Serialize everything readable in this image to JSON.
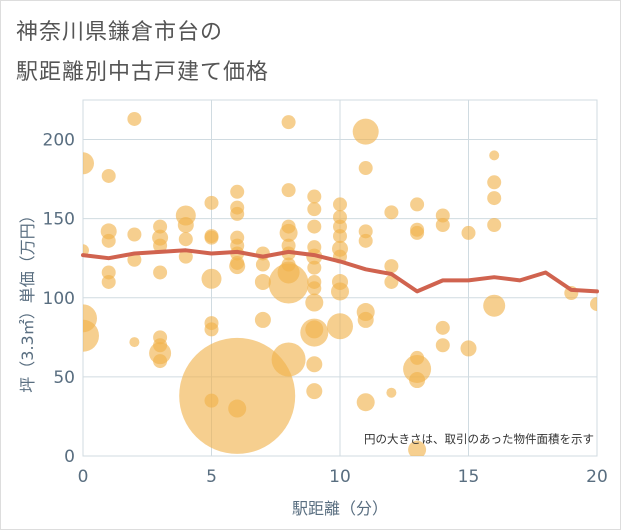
{
  "title_lines": [
    "神奈川県鎌倉市台の",
    "駅距離別中古戸建て価格"
  ],
  "chart_data": {
    "type": "scatter",
    "xlabel": "駅距離（分）",
    "ylabel": "坪（3.3㎡）単価（万円）",
    "xlim": [
      0,
      20
    ],
    "ylim": [
      0,
      225
    ],
    "xticks": [
      0,
      5,
      10,
      15,
      20
    ],
    "yticks": [
      0,
      50,
      100,
      150,
      200
    ],
    "grid": true,
    "annotation": "円の大きさは、取引のあった物件面積を示す",
    "colors": {
      "bubble": "#f0b24a",
      "line": "#d0634f",
      "grid": "#d0dbe1",
      "axis_text": "#596e80"
    },
    "bubbles": [
      {
        "x": 0,
        "y": 185,
        "s": 11
      },
      {
        "x": 0,
        "y": 130,
        "s": 6
      },
      {
        "x": 0,
        "y": 87,
        "s": 14
      },
      {
        "x": 0,
        "y": 76,
        "s": 16
      },
      {
        "x": 1,
        "y": 177,
        "s": 7
      },
      {
        "x": 1,
        "y": 142,
        "s": 8
      },
      {
        "x": 1,
        "y": 136,
        "s": 7
      },
      {
        "x": 1,
        "y": 116,
        "s": 7
      },
      {
        "x": 1,
        "y": 110,
        "s": 7
      },
      {
        "x": 2,
        "y": 213,
        "s": 7
      },
      {
        "x": 2,
        "y": 140,
        "s": 7
      },
      {
        "x": 2,
        "y": 124,
        "s": 7
      },
      {
        "x": 2,
        "y": 72,
        "s": 5
      },
      {
        "x": 3,
        "y": 145,
        "s": 7
      },
      {
        "x": 3,
        "y": 138,
        "s": 8
      },
      {
        "x": 3,
        "y": 133,
        "s": 7
      },
      {
        "x": 3,
        "y": 116,
        "s": 7
      },
      {
        "x": 3,
        "y": 75,
        "s": 7
      },
      {
        "x": 3,
        "y": 70,
        "s": 7
      },
      {
        "x": 3,
        "y": 65,
        "s": 11
      },
      {
        "x": 3,
        "y": 60,
        "s": 7
      },
      {
        "x": 4,
        "y": 152,
        "s": 10
      },
      {
        "x": 4,
        "y": 146,
        "s": 8
      },
      {
        "x": 4,
        "y": 137,
        "s": 7
      },
      {
        "x": 4,
        "y": 126,
        "s": 7
      },
      {
        "x": 5,
        "y": 160,
        "s": 7
      },
      {
        "x": 5,
        "y": 139,
        "s": 7
      },
      {
        "x": 5,
        "y": 138,
        "s": 7
      },
      {
        "x": 5,
        "y": 112,
        "s": 10
      },
      {
        "x": 5,
        "y": 84,
        "s": 7
      },
      {
        "x": 5,
        "y": 80,
        "s": 7
      },
      {
        "x": 5,
        "y": 35,
        "s": 7
      },
      {
        "x": 6,
        "y": 167,
        "s": 7
      },
      {
        "x": 6,
        "y": 157,
        "s": 7
      },
      {
        "x": 6,
        "y": 153,
        "s": 7
      },
      {
        "x": 6,
        "y": 138,
        "s": 7
      },
      {
        "x": 6,
        "y": 133,
        "s": 7
      },
      {
        "x": 6,
        "y": 128,
        "s": 7
      },
      {
        "x": 6,
        "y": 122,
        "s": 7
      },
      {
        "x": 6,
        "y": 120,
        "s": 8
      },
      {
        "x": 6,
        "y": 38,
        "s": 58
      },
      {
        "x": 6,
        "y": 30,
        "s": 9
      },
      {
        "x": 7,
        "y": 128,
        "s": 7
      },
      {
        "x": 7,
        "y": 121,
        "s": 7
      },
      {
        "x": 7,
        "y": 110,
        "s": 8
      },
      {
        "x": 7,
        "y": 86,
        "s": 8
      },
      {
        "x": 8,
        "y": 211,
        "s": 7
      },
      {
        "x": 8,
        "y": 168,
        "s": 7
      },
      {
        "x": 8,
        "y": 145,
        "s": 7
      },
      {
        "x": 8,
        "y": 141,
        "s": 9
      },
      {
        "x": 8,
        "y": 133,
        "s": 7
      },
      {
        "x": 8,
        "y": 128,
        "s": 7
      },
      {
        "x": 8,
        "y": 121,
        "s": 7
      },
      {
        "x": 8,
        "y": 116,
        "s": 11
      },
      {
        "x": 8,
        "y": 109,
        "s": 20
      },
      {
        "x": 8,
        "y": 61,
        "s": 17
      },
      {
        "x": 9,
        "y": 164,
        "s": 7
      },
      {
        "x": 9,
        "y": 156,
        "s": 7
      },
      {
        "x": 9,
        "y": 145,
        "s": 7
      },
      {
        "x": 9,
        "y": 132,
        "s": 7
      },
      {
        "x": 9,
        "y": 126,
        "s": 8
      },
      {
        "x": 9,
        "y": 119,
        "s": 7
      },
      {
        "x": 9,
        "y": 110,
        "s": 7
      },
      {
        "x": 9,
        "y": 106,
        "s": 7
      },
      {
        "x": 9,
        "y": 97,
        "s": 9
      },
      {
        "x": 9,
        "y": 78,
        "s": 14
      },
      {
        "x": 9,
        "y": 80,
        "s": 9
      },
      {
        "x": 9,
        "y": 58,
        "s": 8
      },
      {
        "x": 9,
        "y": 41,
        "s": 8
      },
      {
        "x": 10,
        "y": 159,
        "s": 7
      },
      {
        "x": 10,
        "y": 151,
        "s": 7
      },
      {
        "x": 10,
        "y": 145,
        "s": 7
      },
      {
        "x": 10,
        "y": 139,
        "s": 7
      },
      {
        "x": 10,
        "y": 131,
        "s": 8
      },
      {
        "x": 10,
        "y": 126,
        "s": 7
      },
      {
        "x": 10,
        "y": 110,
        "s": 8
      },
      {
        "x": 10,
        "y": 104,
        "s": 9
      },
      {
        "x": 10,
        "y": 82,
        "s": 13
      },
      {
        "x": 11,
        "y": 205,
        "s": 13
      },
      {
        "x": 11,
        "y": 182,
        "s": 7
      },
      {
        "x": 11,
        "y": 142,
        "s": 7
      },
      {
        "x": 11,
        "y": 136,
        "s": 7
      },
      {
        "x": 11,
        "y": 91,
        "s": 9
      },
      {
        "x": 11,
        "y": 86,
        "s": 8
      },
      {
        "x": 11,
        "y": 34,
        "s": 9
      },
      {
        "x": 12,
        "y": 154,
        "s": 7
      },
      {
        "x": 12,
        "y": 120,
        "s": 7
      },
      {
        "x": 12,
        "y": 110,
        "s": 7
      },
      {
        "x": 12,
        "y": 40,
        "s": 5
      },
      {
        "x": 13,
        "y": 159,
        "s": 7
      },
      {
        "x": 13,
        "y": 143,
        "s": 7
      },
      {
        "x": 13,
        "y": 141,
        "s": 7
      },
      {
        "x": 13,
        "y": 62,
        "s": 7
      },
      {
        "x": 13,
        "y": 55,
        "s": 14
      },
      {
        "x": 13,
        "y": 48,
        "s": 8
      },
      {
        "x": 13,
        "y": 4,
        "s": 9
      },
      {
        "x": 14,
        "y": 152,
        "s": 7
      },
      {
        "x": 14,
        "y": 146,
        "s": 7
      },
      {
        "x": 14,
        "y": 81,
        "s": 7
      },
      {
        "x": 14,
        "y": 70,
        "s": 7
      },
      {
        "x": 15,
        "y": 141,
        "s": 7
      },
      {
        "x": 15,
        "y": 68,
        "s": 8
      },
      {
        "x": 16,
        "y": 190,
        "s": 5
      },
      {
        "x": 16,
        "y": 173,
        "s": 7
      },
      {
        "x": 16,
        "y": 163,
        "s": 7
      },
      {
        "x": 16,
        "y": 146,
        "s": 7
      },
      {
        "x": 16,
        "y": 95,
        "s": 11
      },
      {
        "x": 19,
        "y": 103,
        "s": 7
      },
      {
        "x": 20,
        "y": 96,
        "s": 7
      }
    ],
    "trend": {
      "x": [
        0,
        1,
        2,
        3,
        4,
        5,
        6,
        7,
        8,
        9,
        10,
        11,
        12,
        13,
        14,
        15,
        16,
        17,
        18,
        19,
        20
      ],
      "y": [
        127,
        125,
        128,
        129,
        130,
        128,
        129,
        126,
        129,
        127,
        123,
        118,
        115,
        104,
        111,
        111,
        113,
        111,
        116,
        105,
        104
      ]
    }
  }
}
